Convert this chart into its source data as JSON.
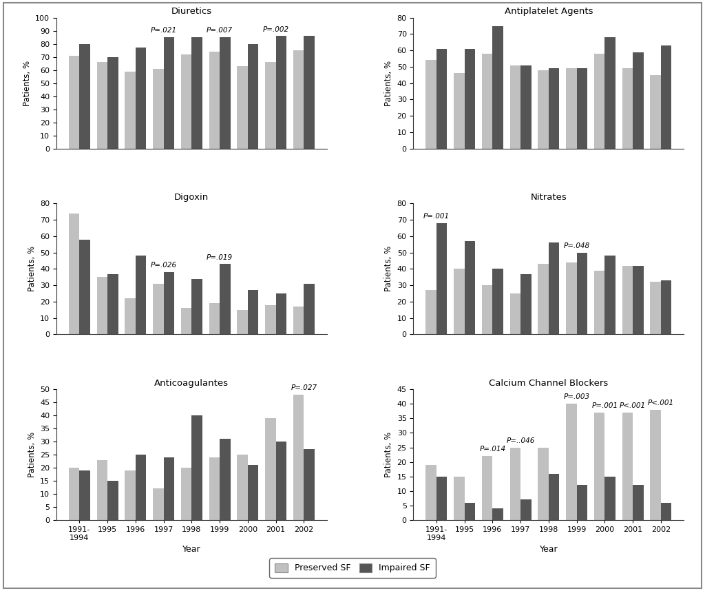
{
  "years": [
    "1991-\n1994",
    "1995",
    "1996",
    "1997",
    "1998",
    "1999",
    "2000",
    "2001",
    "2002"
  ],
  "subplots": [
    {
      "title": "Diuretics",
      "ylabel": "Patients, %",
      "ylim": [
        0,
        100
      ],
      "yticks": [
        0,
        10,
        20,
        30,
        40,
        50,
        60,
        70,
        80,
        90,
        100
      ],
      "preserved": [
        71,
        66,
        59,
        61,
        72,
        74,
        63,
        66,
        75
      ],
      "impaired": [
        80,
        70,
        77,
        85,
        85,
        85,
        80,
        86,
        86
      ],
      "pvalues": {
        "3": "P=.021",
        "5": "P=.007",
        "7": "P=.002"
      }
    },
    {
      "title": "Antiplatelet Agents",
      "ylabel": "Patients, %",
      "ylim": [
        0,
        80
      ],
      "yticks": [
        0,
        10,
        20,
        30,
        40,
        50,
        60,
        70,
        80
      ],
      "preserved": [
        54,
        46,
        58,
        51,
        48,
        49,
        58,
        49,
        45
      ],
      "impaired": [
        61,
        61,
        75,
        51,
        49,
        49,
        68,
        59,
        63
      ],
      "pvalues": {}
    },
    {
      "title": "Digoxin",
      "ylabel": "Patients, %",
      "ylim": [
        0,
        80
      ],
      "yticks": [
        0,
        10,
        20,
        30,
        40,
        50,
        60,
        70,
        80
      ],
      "preserved": [
        74,
        35,
        22,
        31,
        16,
        19,
        15,
        18,
        17
      ],
      "impaired": [
        58,
        37,
        48,
        38,
        34,
        43,
        27,
        25,
        31
      ],
      "pvalues": {
        "3": "P=.026",
        "5": "P=.019"
      }
    },
    {
      "title": "Nitrates",
      "ylabel": "Patients, %",
      "ylim": [
        0,
        80
      ],
      "yticks": [
        0,
        10,
        20,
        30,
        40,
        50,
        60,
        70,
        80
      ],
      "preserved": [
        27,
        40,
        30,
        25,
        43,
        44,
        39,
        42,
        32
      ],
      "impaired": [
        68,
        57,
        40,
        37,
        56,
        50,
        48,
        42,
        33
      ],
      "pvalues": {
        "0": "P=.001",
        "5": "P=.048"
      }
    },
    {
      "title": "Anticoagulantes",
      "ylabel": "Patients, %",
      "ylim": [
        0,
        50
      ],
      "yticks": [
        0,
        5,
        10,
        15,
        20,
        25,
        30,
        35,
        40,
        45,
        50
      ],
      "preserved": [
        20,
        23,
        19,
        12,
        20,
        24,
        25,
        39,
        48
      ],
      "impaired": [
        19,
        15,
        25,
        24,
        40,
        31,
        21,
        30,
        27
      ],
      "pvalues": {
        "8": "P=.027"
      }
    },
    {
      "title": "Calcium Channel Blockers",
      "ylabel": "Patients, %",
      "ylim": [
        0,
        45
      ],
      "yticks": [
        0,
        5,
        10,
        15,
        20,
        25,
        30,
        35,
        40,
        45
      ],
      "preserved": [
        19,
        15,
        22,
        25,
        25,
        40,
        37,
        37,
        38
      ],
      "impaired": [
        15,
        6,
        4,
        7,
        16,
        12,
        15,
        12,
        6
      ],
      "pvalues": {
        "2": "P=.014",
        "3": "P=..046",
        "5": "P=.003",
        "6": "P=.001",
        "7": "P<.001",
        "8": "P<.001"
      }
    }
  ],
  "color_preserved": "#c0c0c0",
  "color_impaired": "#555555",
  "legend_labels": [
    "Preserved SF",
    "Impaired SF"
  ],
  "bar_width": 0.38,
  "figure_border_color": "#aaaaaa"
}
